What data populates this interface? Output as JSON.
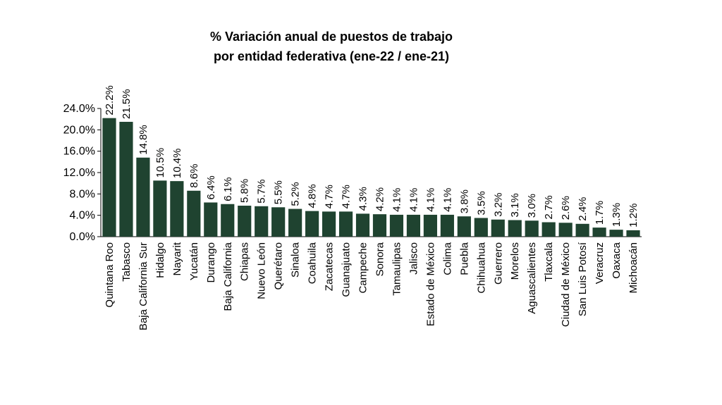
{
  "chart_data": {
    "type": "bar",
    "title_line1": "% Variación anual de puestos de trabajo",
    "title_line2": "por entidad federativa (ene-22 / ene-21)",
    "xlabel": "",
    "ylabel": "",
    "ylim": [
      0,
      24
    ],
    "yticks": [
      0,
      4,
      8,
      12,
      16,
      20,
      24
    ],
    "ytick_labels": [
      "0.0%",
      "4.0%",
      "8.0%",
      "12.0%",
      "16.0%",
      "20.0%",
      "24.0%"
    ],
    "grid": false,
    "bar_color": "#1f4330",
    "categories": [
      "Quintana Roo",
      "Tabasco",
      "Baja California Sur",
      "Hidalgo",
      "Nayarit",
      "Yucatán",
      "Durango",
      "Baja California",
      "Chiapas",
      "Nuevo León",
      "Querétaro",
      "Sinaloa",
      "Coahuila",
      "Zacatecas",
      "Guanajuato",
      "Campeche",
      "Sonora",
      "Tamaulipas",
      "Jalisco",
      "Estado de México",
      "Colima",
      "Puebla",
      "Chihuahua",
      "Guerrero",
      "Morelos",
      "Aguascalientes",
      "Tlaxcala",
      "Ciudad de México",
      "San Luis Potosí",
      "Veracruz",
      "Oaxaca",
      "Michoacán"
    ],
    "values": [
      22.2,
      21.5,
      14.8,
      10.5,
      10.4,
      8.6,
      6.4,
      6.1,
      5.8,
      5.7,
      5.5,
      5.2,
      4.8,
      4.7,
      4.7,
      4.3,
      4.2,
      4.1,
      4.1,
      4.1,
      4.1,
      3.8,
      3.5,
      3.2,
      3.1,
      3.0,
      2.7,
      2.6,
      2.4,
      1.7,
      1.3,
      1.2
    ],
    "value_labels": [
      "22.2%",
      "21.5%",
      "14.8%",
      "10.5%",
      "10.4%",
      "8.6%",
      "6.4%",
      "6.1%",
      "5.8%",
      "5.7%",
      "5.5%",
      "5.2%",
      "4.8%",
      "4.7%",
      "4.7%",
      "4.3%",
      "4.2%",
      "4.1%",
      "4.1%",
      "4.1%",
      "4.1%",
      "3.8%",
      "3.5%",
      "3.2%",
      "3.1%",
      "3.0%",
      "2.7%",
      "2.6%",
      "2.4%",
      "1.7%",
      "1.3%",
      "1.2%"
    ]
  }
}
